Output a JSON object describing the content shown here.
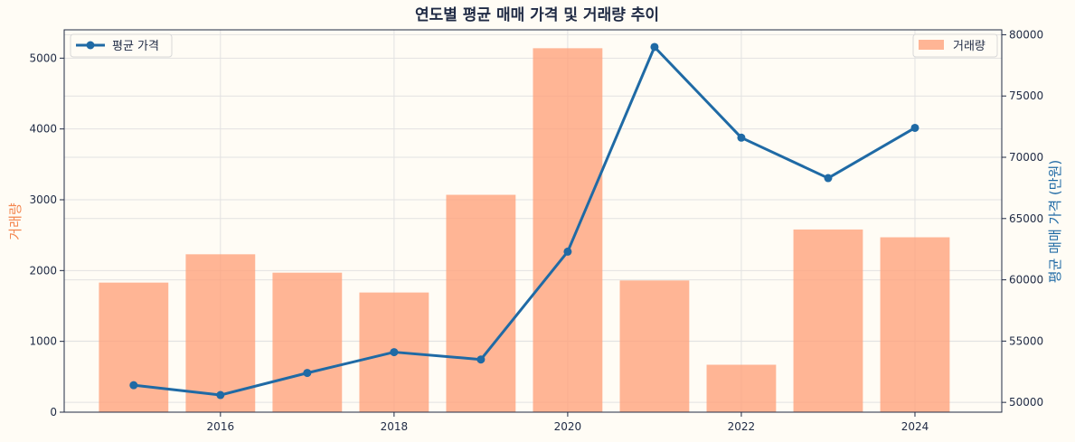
{
  "chart_data": {
    "type": "bar+line",
    "title": "연도별 평균 매매 가격 및 거래량 추이",
    "x": [
      2015,
      2016,
      2017,
      2018,
      2019,
      2020,
      2021,
      2022,
      2023,
      2024
    ],
    "xlim": [
      2014.2,
      2025.0
    ],
    "xticks": [
      2016,
      2018,
      2020,
      2022,
      2024
    ],
    "series": [
      {
        "name": "거래량",
        "type": "bar",
        "axis": "left",
        "color": "#ffa07a",
        "values": [
          1830,
          2230,
          1970,
          1690,
          3070,
          5140,
          1860,
          670,
          2580,
          2470
        ]
      },
      {
        "name": "평균 가격",
        "type": "line",
        "axis": "right",
        "color": "#1f6aa5",
        "values": [
          51400,
          50600,
          52400,
          54100,
          53500,
          62300,
          79000,
          71600,
          68300,
          72400
        ]
      }
    ],
    "y_left": {
      "label": "거래량",
      "color": "#f4864f",
      "lim": [
        0,
        5400
      ],
      "ticks": [
        0,
        1000,
        2000,
        3000,
        4000,
        5000
      ]
    },
    "y_right": {
      "label": "평균 매매 가격 (만원)",
      "color": "#1f6aa5",
      "lim": [
        49200,
        80400
      ],
      "ticks": [
        50000,
        55000,
        60000,
        65000,
        70000,
        75000,
        80000
      ]
    },
    "grid": true,
    "legends": {
      "line": "top-left",
      "bar": "top-right"
    }
  }
}
